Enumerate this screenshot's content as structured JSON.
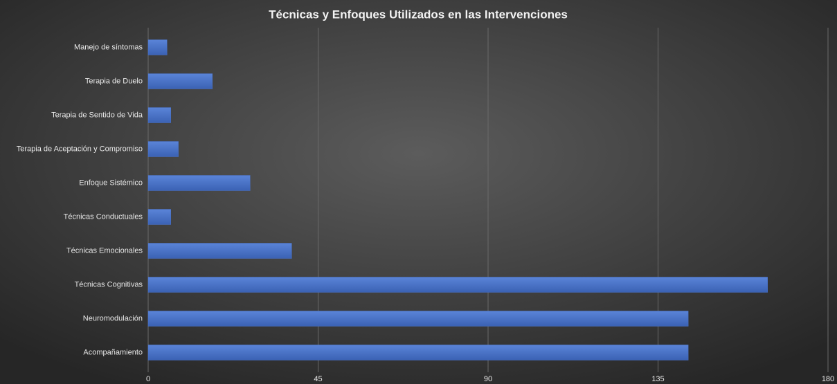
{
  "chart_data": {
    "type": "bar",
    "orientation": "horizontal",
    "title": "Técnicas y Enfoques Utilizados  en las Intervenciones",
    "categories": [
      "Manejo de síntomas",
      "Terapia de Duelo",
      "Terapia de Sentido de Vida",
      "Terapia de Aceptación y Compromiso",
      "Enfoque Sistémico",
      "Técnicas Conductuales",
      "Técnicas Emocionales",
      "Técnicas Cognitivas",
      "Neuromodulación",
      "Acompañamiento"
    ],
    "values": [
      5,
      17,
      6,
      8,
      27,
      6,
      38,
      164,
      143,
      143
    ],
    "color": "#4a72c8",
    "xlim": [
      0,
      180
    ],
    "xticks": [
      0,
      45,
      90,
      135,
      180
    ],
    "grid": true
  }
}
